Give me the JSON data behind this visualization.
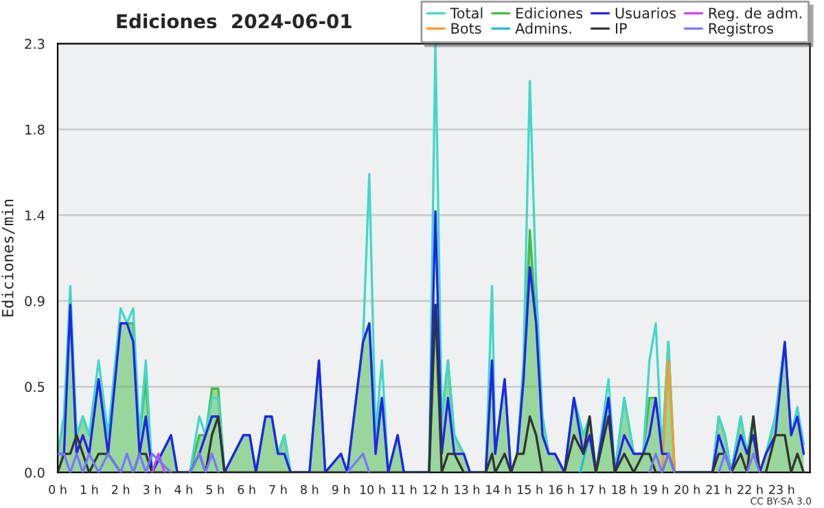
{
  "chart_data": {
    "type": "line",
    "title": "Ediciones  2024-06-01",
    "ylabel": "Ediciones/min",
    "x": [
      0,
      0.2,
      0.4,
      0.6,
      0.8,
      1.0,
      1.3,
      1.6,
      2.0,
      2.2,
      2.4,
      2.6,
      2.8,
      3.0,
      3.6,
      3.8,
      4.2,
      4.5,
      4.7,
      4.9,
      5.1,
      5.3,
      5.6,
      5.9,
      6.1,
      6.3,
      6.6,
      6.8,
      7.0,
      7.2,
      7.4,
      8.0,
      8.3,
      8.5,
      9.0,
      9.2,
      9.7,
      9.9,
      10.1,
      10.3,
      10.5,
      10.8,
      11.0,
      11.8,
      12.0,
      12.2,
      12.4,
      12.6,
      12.9,
      13.1,
      13.6,
      13.8,
      13.9,
      14.2,
      14.4,
      14.6,
      14.8,
      15.0,
      15.2,
      15.4,
      15.6,
      15.8,
      16.1,
      16.4,
      16.7,
      16.9,
      17.1,
      17.5,
      17.7,
      18.0,
      18.3,
      18.6,
      18.8,
      19.0,
      19.2,
      19.4,
      19.6,
      20.8,
      21.0,
      21.2,
      21.4,
      21.7,
      21.9,
      22.1,
      22.3,
      22.5,
      22.8,
      23.1,
      23.3,
      23.5,
      23.7
    ],
    "series": [
      {
        "name": "Total",
        "color": "#40d8c8",
        "values": [
          0.1,
          0.3,
          1.0,
          0.2,
          0.3,
          0.2,
          0.6,
          0.2,
          0.88,
          0.8,
          0.88,
          0.2,
          0.6,
          0,
          0.2,
          0,
          0,
          0.3,
          0.2,
          0.4,
          0.4,
          0,
          0.1,
          0.2,
          0.2,
          0,
          0.3,
          0.3,
          0.1,
          0.2,
          0,
          0,
          0.6,
          0,
          0.1,
          0,
          0.7,
          1.6,
          0.2,
          0.6,
          0,
          0.2,
          0,
          0,
          2.3,
          0.3,
          0.6,
          0.2,
          0.1,
          0,
          0,
          1.0,
          0.1,
          0.5,
          0,
          0.1,
          0.6,
          2.1,
          1.0,
          0.3,
          0.1,
          0.1,
          0,
          0.4,
          0.2,
          0.3,
          0,
          0.5,
          0,
          0.4,
          0.1,
          0.1,
          0.6,
          0.8,
          0.1,
          0.7,
          0,
          0,
          0.3,
          0.2,
          0,
          0.3,
          0.1,
          0.3,
          0,
          0.1,
          0.3,
          0.7,
          0.2,
          0.35,
          0.15
        ]
      },
      {
        "name": "Bots",
        "color": "#ff9922",
        "x": [
          19.2,
          19.4,
          19.6
        ],
        "values": [
          0,
          0.6,
          0
        ]
      },
      {
        "name": "Ediciones",
        "type": "area",
        "color": "#44bb44",
        "values": [
          0.1,
          0.3,
          0.85,
          0.2,
          0.3,
          0.2,
          0.5,
          0.2,
          0.8,
          0.8,
          0.8,
          0.2,
          0.5,
          0,
          0.2,
          0,
          0,
          0.2,
          0.2,
          0.45,
          0.45,
          0,
          0.1,
          0.2,
          0.2,
          0,
          0.3,
          0.3,
          0.1,
          0.2,
          0,
          0,
          0.6,
          0,
          0.1,
          0,
          0.7,
          0.8,
          0.2,
          0.4,
          0,
          0.2,
          0,
          0,
          0.9,
          0.3,
          0.6,
          0.2,
          0.1,
          0,
          0,
          0.6,
          0.1,
          0.5,
          0,
          0.1,
          0.5,
          1.3,
          0.8,
          0.3,
          0.1,
          0.1,
          0,
          0.4,
          0.2,
          0.3,
          0,
          0.4,
          0,
          0.4,
          0.1,
          0.1,
          0.4,
          0.4,
          0.1,
          0.7,
          0,
          0,
          0.3,
          0.2,
          0,
          0.3,
          0.1,
          0.3,
          0,
          0.1,
          0.3,
          0.7,
          0.2,
          0.3,
          0.1
        ]
      },
      {
        "name": "Admins.",
        "color": "#22bbdd",
        "x": [
          16.6,
          16.9,
          17.1
        ],
        "values": [
          0,
          0.2,
          0
        ]
      },
      {
        "name": "Usuarios",
        "color": "#2222ee",
        "values": [
          0.1,
          0.1,
          0.9,
          0.1,
          0.2,
          0.1,
          0.5,
          0.1,
          0.8,
          0.8,
          0.7,
          0.1,
          0.3,
          0,
          0.2,
          0,
          0,
          0.1,
          0.2,
          0.3,
          0.3,
          0,
          0.1,
          0.2,
          0.2,
          0,
          0.3,
          0.3,
          0.1,
          0.1,
          0,
          0,
          0.6,
          0,
          0.1,
          0,
          0.7,
          0.8,
          0.1,
          0.4,
          0,
          0.2,
          0,
          0,
          1.4,
          0.1,
          0.4,
          0.1,
          0.1,
          0,
          0,
          0.6,
          0.1,
          0.5,
          0,
          0.1,
          0.5,
          1.1,
          0.8,
          0.2,
          0.1,
          0.1,
          0,
          0.4,
          0.1,
          0.2,
          0,
          0.4,
          0,
          0.2,
          0.1,
          0.1,
          0.2,
          0.4,
          0.1,
          0.1,
          0,
          0,
          0.2,
          0.1,
          0,
          0.2,
          0.1,
          0.2,
          0,
          0.1,
          0.2,
          0.7,
          0.2,
          0.3,
          0.1
        ]
      },
      {
        "name": "IP",
        "color": "#333333",
        "values": [
          0,
          0.1,
          0.1,
          0.2,
          0.1,
          0,
          0.1,
          0.1,
          0,
          0,
          0,
          0.1,
          0.1,
          0,
          0,
          0,
          0,
          0.1,
          0,
          0.2,
          0.3,
          0,
          0,
          0,
          0,
          0,
          0,
          0,
          0,
          0,
          0,
          0,
          0,
          0,
          0,
          0,
          0,
          0,
          0,
          0,
          0,
          0,
          0,
          0,
          0.9,
          0,
          0.1,
          0.1,
          0,
          0,
          0,
          0.1,
          0,
          0.1,
          0,
          0.1,
          0.1,
          0.3,
          0.2,
          0,
          0,
          0,
          0,
          0.2,
          0.1,
          0.3,
          0,
          0.3,
          0,
          0.1,
          0,
          0.1,
          0.1,
          0,
          0,
          0.1,
          0,
          0,
          0.1,
          0.1,
          0,
          0.1,
          0,
          0.3,
          0,
          0,
          0.2,
          0.2,
          0,
          0.1,
          0
        ]
      },
      {
        "name": "Reg. de adm.",
        "color": "#cc44ee",
        "x": [
          3.0,
          3.2,
          3.4
        ],
        "values": [
          0,
          0.1,
          0
        ]
      },
      {
        "name": "Registros",
        "color": "#7777ff",
        "values": [
          0.1,
          0.1,
          0,
          0.1,
          0,
          0.1,
          0,
          0.1,
          0,
          0.1,
          0,
          0.1,
          0,
          0.1,
          0,
          null,
          0,
          0.1,
          0,
          0.1,
          0,
          null,
          null,
          null,
          null,
          null,
          null,
          null,
          null,
          null,
          null,
          null,
          null,
          null,
          null,
          0,
          0.1,
          0,
          null,
          null,
          null,
          null,
          null,
          null,
          null,
          null,
          null,
          null,
          null,
          null,
          null,
          null,
          null,
          null,
          null,
          null,
          null,
          null,
          null,
          null,
          null,
          null,
          null,
          null,
          null,
          null,
          null,
          null,
          null,
          null,
          null,
          null,
          0,
          0.1,
          0,
          0.1,
          0,
          null,
          0,
          0.1,
          0,
          null,
          0,
          0.1,
          0,
          null,
          null,
          null,
          null,
          null,
          null
        ]
      }
    ],
    "xlim": [
      0,
      23.9
    ],
    "xticks": [
      {
        "value": 0,
        "label": "0 h"
      },
      {
        "value": 1,
        "label": "1 h"
      },
      {
        "value": 2,
        "label": "2 h"
      },
      {
        "value": 3,
        "label": "3 h"
      },
      {
        "value": 4,
        "label": "4 h"
      },
      {
        "value": 5,
        "label": "5 h"
      },
      {
        "value": 6,
        "label": "6 h"
      },
      {
        "value": 7,
        "label": "7 h"
      },
      {
        "value": 8,
        "label": "8 h"
      },
      {
        "value": 9,
        "label": "9 h"
      },
      {
        "value": 10,
        "label": "10 h"
      },
      {
        "value": 11,
        "label": "11 h"
      },
      {
        "value": 12,
        "label": "12 h"
      },
      {
        "value": 13,
        "label": "13 h"
      },
      {
        "value": 14,
        "label": "14 h"
      },
      {
        "value": 15,
        "label": "15 h"
      },
      {
        "value": 16,
        "label": "16 h"
      },
      {
        "value": 17,
        "label": "17 h"
      },
      {
        "value": 18,
        "label": "18 h"
      },
      {
        "value": 19,
        "label": "19 h"
      },
      {
        "value": 20,
        "label": "20 h"
      },
      {
        "value": 21,
        "label": "21 h"
      },
      {
        "value": 22,
        "label": "22 h"
      },
      {
        "value": 23,
        "label": "23 h"
      }
    ],
    "ylim": [
      0,
      2.3
    ],
    "yticks": [
      {
        "value": 0,
        "label": "0.0"
      },
      {
        "value": 0.46,
        "label": "0.5"
      },
      {
        "value": 0.92,
        "label": "0.9"
      },
      {
        "value": 1.38,
        "label": "1.4"
      },
      {
        "value": 1.84,
        "label": "1.8"
      },
      {
        "value": 2.3,
        "label": "2.3"
      }
    ],
    "grid": "y",
    "legend": "top right",
    "annotations": [
      "CC BY-SA 3.0"
    ]
  }
}
